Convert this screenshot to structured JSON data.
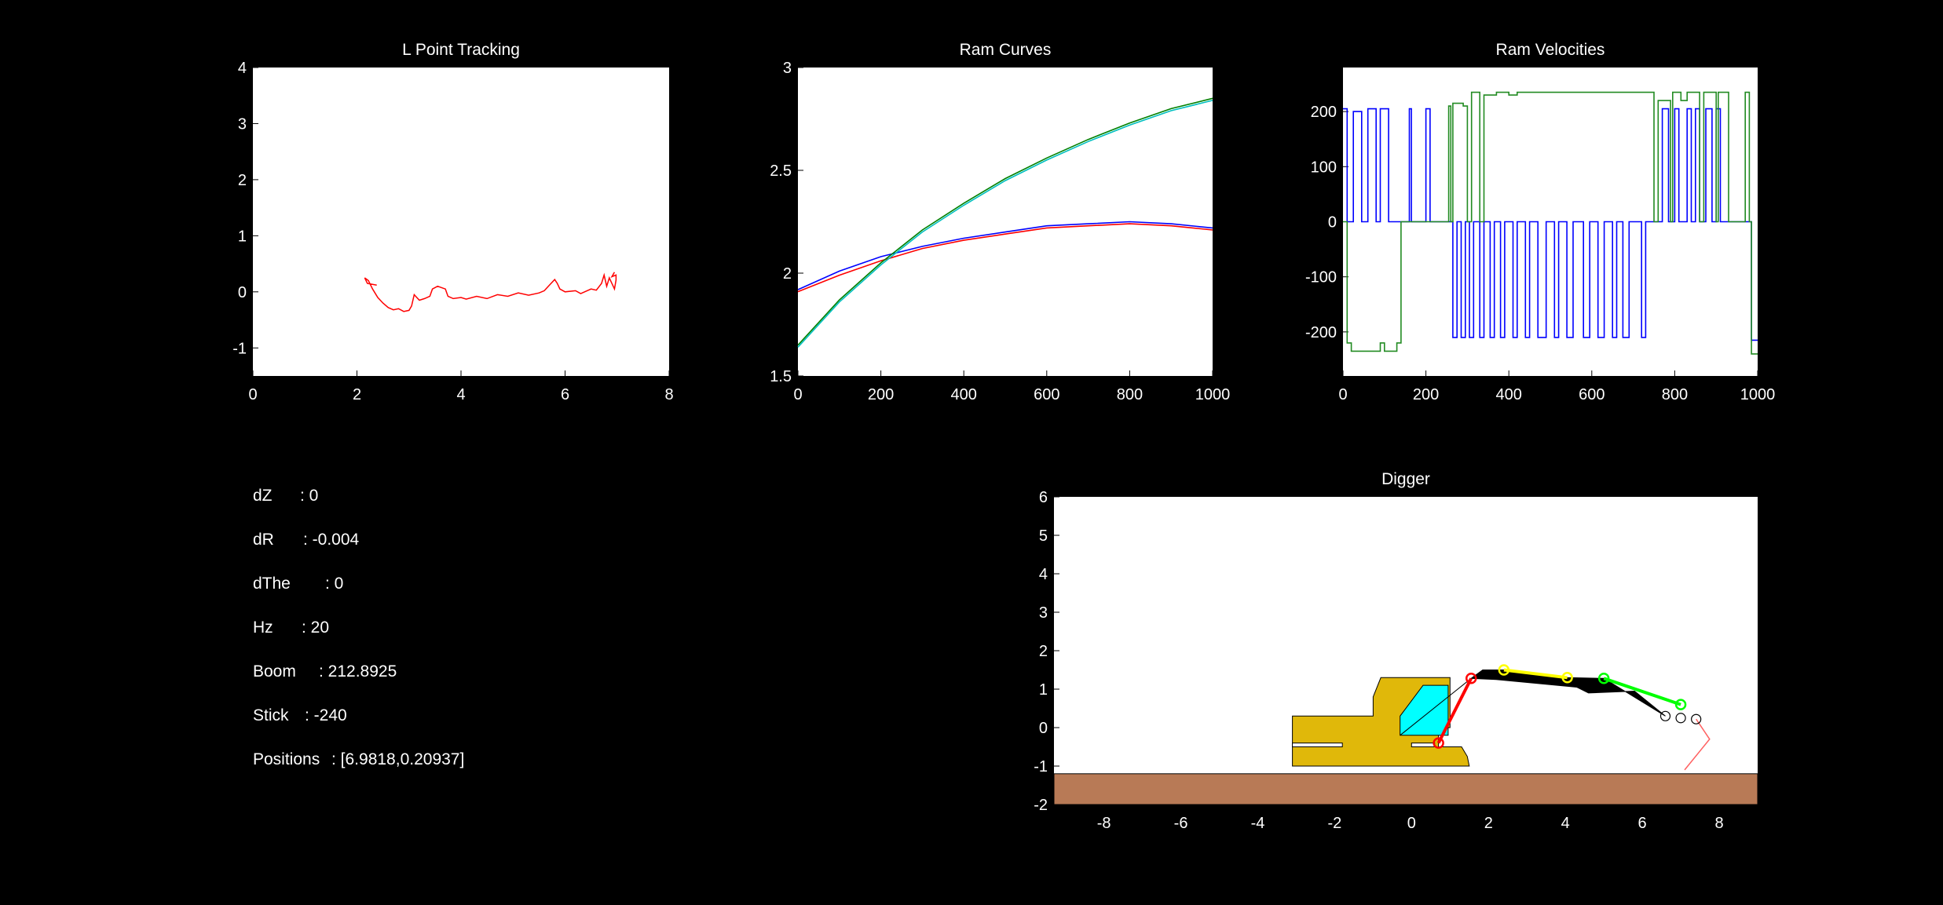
{
  "colors": {
    "background": "#000000",
    "axes_bg": "#ffffff",
    "text": "#ffffff",
    "tracking": "#ff0000",
    "ram1_measured": "#0000ff",
    "ram1_reference": "#ff0000",
    "ram2_measured": "#008000",
    "ram2_reference": "#00bfbf",
    "vel_boom": "#0000ff",
    "vel_stick": "#228b22",
    "ground": "#b87a56",
    "body": "#e0b80a",
    "cab": "#00ffff",
    "boom": "#ff0000",
    "stick": "#ffff00",
    "bucket_link": "#00ff00",
    "bucket": "#ff6060",
    "linkage": "#000000"
  },
  "readouts": [
    {
      "label": "dZ",
      "sep": ": ",
      "value": "0"
    },
    {
      "label": "dR",
      "sep": ": ",
      "value": "-0.004"
    },
    {
      "label": "dThe",
      "sep": ": ",
      "value": "0"
    },
    {
      "label": "Hz",
      "sep": ": ",
      "value": "20"
    },
    {
      "label": "Boom",
      "sep": ": ",
      "value": "212.8925"
    },
    {
      "label": "Stick",
      "sep": ": ",
      "value": "-240"
    },
    {
      "label": "Positions",
      "sep": ": ",
      "value": "[6.9818,0.20937]"
    }
  ],
  "chart_data": [
    {
      "id": "tracking",
      "type": "line",
      "title": "L Point Tracking",
      "xlim": [
        0,
        8
      ],
      "ylim": [
        -1.5,
        4
      ],
      "xticks": [
        0,
        2,
        4,
        6,
        8
      ],
      "yticks": [
        -1,
        0,
        1,
        2,
        3,
        4
      ],
      "grid": false,
      "series": [
        {
          "color_key": "tracking",
          "points": [
            [
              2.38,
              0.12
            ],
            [
              2.2,
              0.15
            ],
            [
              2.15,
              0.25
            ],
            [
              2.22,
              0.2
            ],
            [
              2.3,
              0.05
            ],
            [
              2.4,
              -0.1
            ],
            [
              2.5,
              -0.2
            ],
            [
              2.6,
              -0.28
            ],
            [
              2.7,
              -0.32
            ],
            [
              2.8,
              -0.3
            ],
            [
              2.9,
              -0.35
            ],
            [
              3.0,
              -0.33
            ],
            [
              3.05,
              -0.25
            ],
            [
              3.1,
              -0.05
            ],
            [
              3.15,
              -0.1
            ],
            [
              3.2,
              -0.15
            ],
            [
              3.3,
              -0.12
            ],
            [
              3.4,
              -0.08
            ],
            [
              3.45,
              0.05
            ],
            [
              3.55,
              0.1
            ],
            [
              3.7,
              0.05
            ],
            [
              3.75,
              -0.08
            ],
            [
              3.85,
              -0.12
            ],
            [
              4.0,
              -0.1
            ],
            [
              4.1,
              -0.13
            ],
            [
              4.3,
              -0.08
            ],
            [
              4.5,
              -0.12
            ],
            [
              4.7,
              -0.05
            ],
            [
              4.9,
              -0.08
            ],
            [
              5.1,
              -0.02
            ],
            [
              5.3,
              -0.06
            ],
            [
              5.5,
              -0.02
            ],
            [
              5.6,
              0.02
            ],
            [
              5.7,
              0.12
            ],
            [
              5.8,
              0.22
            ],
            [
              5.85,
              0.15
            ],
            [
              5.9,
              0.05
            ],
            [
              6.0,
              0.0
            ],
            [
              6.2,
              0.02
            ],
            [
              6.3,
              -0.03
            ],
            [
              6.5,
              0.05
            ],
            [
              6.6,
              0.03
            ],
            [
              6.7,
              0.15
            ],
            [
              6.75,
              0.3
            ],
            [
              6.8,
              0.1
            ],
            [
              6.85,
              0.25
            ],
            [
              6.9,
              0.15
            ],
            [
              6.95,
              0.05
            ],
            [
              6.98,
              0.21
            ],
            [
              6.98,
              0.3
            ],
            [
              6.9,
              0.27
            ],
            [
              6.95,
              0.35
            ]
          ]
        }
      ]
    },
    {
      "id": "ram_curves",
      "type": "line",
      "title": "Ram Curves",
      "xlim": [
        0,
        1000
      ],
      "ylim": [
        1.5,
        3
      ],
      "xticks": [
        0,
        200,
        400,
        600,
        800,
        1000
      ],
      "yticks": [
        1.5,
        2,
        2.5,
        3
      ],
      "grid": false,
      "series": [
        {
          "color_key": "ram1_reference",
          "x": [
            0,
            100,
            200,
            300,
            400,
            500,
            600,
            700,
            800,
            900,
            1000
          ],
          "y": [
            1.91,
            1.99,
            2.06,
            2.12,
            2.16,
            2.19,
            2.22,
            2.23,
            2.24,
            2.23,
            2.21
          ]
        },
        {
          "color_key": "ram1_measured",
          "x": [
            0,
            100,
            200,
            300,
            400,
            500,
            600,
            700,
            800,
            900,
            1000
          ],
          "y": [
            1.92,
            2.01,
            2.08,
            2.13,
            2.17,
            2.2,
            2.23,
            2.24,
            2.25,
            2.24,
            2.22
          ]
        },
        {
          "color_key": "ram2_reference",
          "x": [
            0,
            100,
            200,
            300,
            400,
            500,
            600,
            700,
            800,
            900,
            1000
          ],
          "y": [
            1.64,
            1.86,
            2.04,
            2.2,
            2.33,
            2.45,
            2.55,
            2.64,
            2.72,
            2.79,
            2.84
          ]
        },
        {
          "color_key": "ram2_measured",
          "x": [
            0,
            100,
            200,
            300,
            400,
            500,
            600,
            700,
            800,
            900,
            1000
          ],
          "y": [
            1.65,
            1.87,
            2.05,
            2.21,
            2.34,
            2.46,
            2.56,
            2.65,
            2.73,
            2.8,
            2.85
          ]
        }
      ]
    },
    {
      "id": "ram_velocities",
      "type": "line",
      "title": "Ram Velocities",
      "xlim": [
        0,
        1000
      ],
      "ylim": [
        -280,
        280
      ],
      "xticks": [
        0,
        200,
        400,
        600,
        800,
        1000
      ],
      "yticks": [
        -200,
        -100,
        0,
        100,
        200
      ],
      "grid": false,
      "series": [
        {
          "color_key": "vel_boom",
          "segments": [
            [
              0,
              205
            ],
            [
              10,
              0
            ],
            [
              25,
              200
            ],
            [
              45,
              0
            ],
            [
              60,
              205
            ],
            [
              80,
              0
            ],
            [
              90,
              205
            ],
            [
              110,
              0
            ],
            [
              150,
              0
            ],
            [
              160,
              205
            ],
            [
              165,
              0
            ],
            [
              200,
              205
            ],
            [
              210,
              0
            ],
            [
              260,
              0
            ],
            [
              265,
              -210
            ],
            [
              275,
              0
            ],
            [
              285,
              -210
            ],
            [
              295,
              0
            ],
            [
              305,
              -210
            ],
            [
              315,
              0
            ],
            [
              330,
              -210
            ],
            [
              340,
              0
            ],
            [
              355,
              -210
            ],
            [
              365,
              0
            ],
            [
              380,
              -210
            ],
            [
              390,
              0
            ],
            [
              410,
              -210
            ],
            [
              420,
              0
            ],
            [
              440,
              -210
            ],
            [
              450,
              0
            ],
            [
              470,
              -210
            ],
            [
              490,
              0
            ],
            [
              510,
              -210
            ],
            [
              520,
              0
            ],
            [
              540,
              -210
            ],
            [
              555,
              0
            ],
            [
              580,
              -210
            ],
            [
              595,
              0
            ],
            [
              615,
              -210
            ],
            [
              630,
              0
            ],
            [
              650,
              -210
            ],
            [
              660,
              0
            ],
            [
              675,
              -210
            ],
            [
              690,
              0
            ],
            [
              720,
              -210
            ],
            [
              730,
              0
            ],
            [
              760,
              0
            ],
            [
              770,
              205
            ],
            [
              785,
              0
            ],
            [
              800,
              205
            ],
            [
              810,
              0
            ],
            [
              830,
              205
            ],
            [
              840,
              0
            ],
            [
              850,
              205
            ],
            [
              860,
              0
            ],
            [
              875,
              205
            ],
            [
              890,
              0
            ],
            [
              900,
              205
            ],
            [
              910,
              0
            ],
            [
              980,
              0
            ],
            [
              985,
              -215
            ],
            [
              1000,
              -215
            ]
          ]
        },
        {
          "color_key": "vel_stick",
          "segments": [
            [
              0,
              0
            ],
            [
              10,
              -220
            ],
            [
              20,
              -235
            ],
            [
              60,
              -235
            ],
            [
              90,
              -220
            ],
            [
              100,
              -235
            ],
            [
              130,
              -220
            ],
            [
              140,
              0
            ],
            [
              250,
              0
            ],
            [
              255,
              210
            ],
            [
              260,
              0
            ],
            [
              265,
              215
            ],
            [
              290,
              210
            ],
            [
              300,
              0
            ],
            [
              310,
              235
            ],
            [
              330,
              0
            ],
            [
              340,
              230
            ],
            [
              370,
              235
            ],
            [
              400,
              230
            ],
            [
              420,
              235
            ],
            [
              480,
              235
            ],
            [
              740,
              235
            ],
            [
              750,
              0
            ],
            [
              760,
              220
            ],
            [
              790,
              0
            ],
            [
              795,
              235
            ],
            [
              815,
              220
            ],
            [
              830,
              235
            ],
            [
              860,
              0
            ],
            [
              870,
              235
            ],
            [
              895,
              235
            ],
            [
              900,
              0
            ],
            [
              905,
              235
            ],
            [
              930,
              0
            ],
            [
              965,
              0
            ],
            [
              970,
              235
            ],
            [
              980,
              0
            ],
            [
              985,
              -240
            ],
            [
              1000,
              -240
            ]
          ]
        }
      ]
    },
    {
      "id": "digger",
      "type": "diagram",
      "title": "Digger",
      "xlim": [
        -9.3,
        9
      ],
      "ylim": [
        -2,
        6
      ],
      "xticks": [
        -8,
        -6,
        -4,
        -2,
        0,
        2,
        4,
        6,
        8
      ],
      "yticks": [
        -2,
        -1,
        0,
        1,
        2,
        3,
        4,
        5,
        6
      ],
      "grid": false,
      "ground_top": -1.2,
      "body": [
        [
          -3.1,
          -1.0
        ],
        [
          1.5,
          -1.0
        ],
        [
          1.45,
          -0.75
        ],
        [
          1.3,
          -0.5
        ],
        [
          0.7,
          -0.5
        ],
        [
          0.7,
          0.0
        ],
        [
          1.0,
          0.0
        ],
        [
          1.0,
          1.3
        ],
        [
          -0.8,
          1.3
        ],
        [
          -1.0,
          0.8
        ],
        [
          -1.0,
          0.3
        ],
        [
          -3.1,
          0.3
        ]
      ],
      "track_slot": [
        [
          -3.1,
          -0.5
        ],
        [
          -1.8,
          -0.5
        ],
        [
          -1.8,
          -0.4
        ],
        [
          -3.1,
          -0.4
        ]
      ],
      "track_slot2": [
        [
          0.0,
          -0.5
        ],
        [
          0.6,
          -0.5
        ],
        [
          0.6,
          -0.4
        ],
        [
          0.0,
          -0.4
        ]
      ],
      "cab": [
        [
          -0.3,
          -0.2
        ],
        [
          0.95,
          -0.2
        ],
        [
          0.95,
          1.1
        ],
        [
          0.3,
          1.1
        ],
        [
          -0.3,
          0.3
        ]
      ],
      "joints": {
        "boom_base": [
          0.7,
          -0.4
        ],
        "boom_top": [
          1.55,
          1.28
        ],
        "stick_a": [
          2.4,
          1.5
        ],
        "stick_b": [
          4.05,
          1.3
        ],
        "link_a": [
          5.0,
          1.28
        ],
        "link_b": [
          7.0,
          0.6
        ],
        "bucket_pivots": [
          [
            6.6,
            0.3
          ],
          [
            7.0,
            0.25
          ],
          [
            7.4,
            0.22
          ]
        ]
      },
      "arm_polygon": [
        [
          1.55,
          1.28
        ],
        [
          1.85,
          1.5
        ],
        [
          2.4,
          1.5
        ],
        [
          4.05,
          1.3
        ],
        [
          5.0,
          1.28
        ],
        [
          6.6,
          0.3
        ],
        [
          5.8,
          0.95
        ],
        [
          4.6,
          0.9
        ],
        [
          4.3,
          1.05
        ],
        [
          2.2,
          1.25
        ]
      ],
      "bucket": [
        [
          7.4,
          0.22
        ],
        [
          7.75,
          -0.3
        ],
        [
          7.1,
          -1.1
        ]
      ]
    }
  ]
}
